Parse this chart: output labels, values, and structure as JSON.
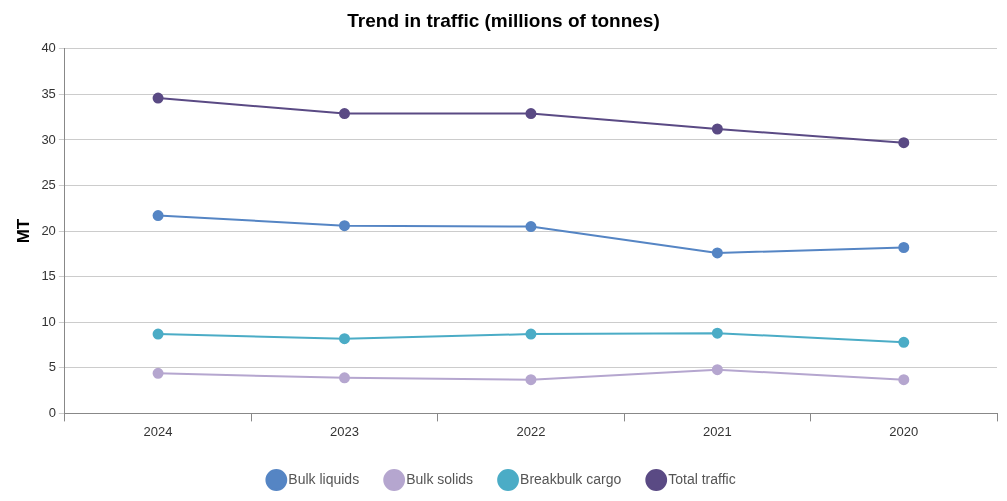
{
  "chart_data": {
    "type": "line",
    "title": "Trend in traffic (millions of tonnes)",
    "ylabel": "MT",
    "categories": [
      "2024",
      "2023",
      "2022",
      "2021",
      "2020"
    ],
    "series": [
      {
        "name": "Bulk liquids",
        "color": "#5585c4",
        "values": [
          21.7,
          20.6,
          20.5,
          17.6,
          18.2
        ]
      },
      {
        "name": "Bulk solids",
        "color": "#b5a6cf",
        "values": [
          4.4,
          3.9,
          3.7,
          4.8,
          3.7
        ]
      },
      {
        "name": "Breakbulk cargo",
        "color": "#4bacc6",
        "values": [
          8.7,
          8.2,
          8.7,
          8.8,
          7.8
        ]
      },
      {
        "name": "Total traffic",
        "color": "#5a4a84",
        "values": [
          34.6,
          32.9,
          32.9,
          31.2,
          29.7
        ]
      }
    ],
    "ylim": [
      0,
      40
    ],
    "yticks": [
      0,
      5,
      10,
      15,
      20,
      25,
      30,
      35,
      40
    ],
    "grid": "y",
    "legend": "bottom",
    "marker": "circle",
    "line_style": "solid"
  }
}
